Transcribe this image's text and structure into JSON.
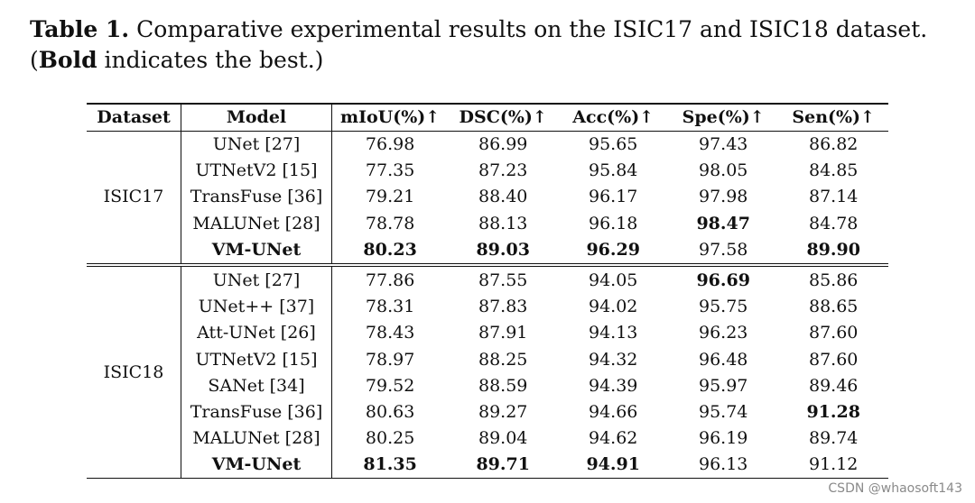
{
  "caption": {
    "label": "Table 1.",
    "text_before_bold": "Comparative experimental results on the ISIC17 and ISIC18 dataset. (",
    "bold_word": "Bold",
    "text_after_bold": " indicates the best.)"
  },
  "table": {
    "headers": [
      "Dataset",
      "Model",
      "mIoU(%)↑",
      "DSC(%)↑",
      "Acc(%)↑",
      "Spe(%)↑",
      "Sen(%)↑"
    ],
    "groups": [
      {
        "dataset": "ISIC17",
        "rows": [
          {
            "model": "UNet [27]",
            "values": [
              "76.98",
              "86.99",
              "95.65",
              "97.43",
              "86.82"
            ],
            "bold": [
              false,
              false,
              false,
              false,
              false
            ],
            "model_bold": false
          },
          {
            "model": "UTNetV2 [15]",
            "values": [
              "77.35",
              "87.23",
              "95.84",
              "98.05",
              "84.85"
            ],
            "bold": [
              false,
              false,
              false,
              false,
              false
            ],
            "model_bold": false
          },
          {
            "model": "TransFuse [36]",
            "values": [
              "79.21",
              "88.40",
              "96.17",
              "97.98",
              "87.14"
            ],
            "bold": [
              false,
              false,
              false,
              false,
              false
            ],
            "model_bold": false
          },
          {
            "model": "MALUNet [28]",
            "values": [
              "78.78",
              "88.13",
              "96.18",
              "98.47",
              "84.78"
            ],
            "bold": [
              false,
              false,
              false,
              true,
              false
            ],
            "model_bold": false
          },
          {
            "model": "VM-UNet",
            "values": [
              "80.23",
              "89.03",
              "96.29",
              "97.58",
              "89.90"
            ],
            "bold": [
              true,
              true,
              true,
              false,
              true
            ],
            "model_bold": true
          }
        ]
      },
      {
        "dataset": "ISIC18",
        "rows": [
          {
            "model": "UNet [27]",
            "values": [
              "77.86",
              "87.55",
              "94.05",
              "96.69",
              "85.86"
            ],
            "bold": [
              false,
              false,
              false,
              true,
              false
            ],
            "model_bold": false
          },
          {
            "model": "UNet++ [37]",
            "values": [
              "78.31",
              "87.83",
              "94.02",
              "95.75",
              "88.65"
            ],
            "bold": [
              false,
              false,
              false,
              false,
              false
            ],
            "model_bold": false
          },
          {
            "model": "Att-UNet [26]",
            "values": [
              "78.43",
              "87.91",
              "94.13",
              "96.23",
              "87.60"
            ],
            "bold": [
              false,
              false,
              false,
              false,
              false
            ],
            "model_bold": false
          },
          {
            "model": "UTNetV2 [15]",
            "values": [
              "78.97",
              "88.25",
              "94.32",
              "96.48",
              "87.60"
            ],
            "bold": [
              false,
              false,
              false,
              false,
              false
            ],
            "model_bold": false
          },
          {
            "model": "SANet [34]",
            "values": [
              "79.52",
              "88.59",
              "94.39",
              "95.97",
              "89.46"
            ],
            "bold": [
              false,
              false,
              false,
              false,
              false
            ],
            "model_bold": false
          },
          {
            "model": "TransFuse [36]",
            "values": [
              "80.63",
              "89.27",
              "94.66",
              "95.74",
              "91.28"
            ],
            "bold": [
              false,
              false,
              false,
              false,
              true
            ],
            "model_bold": false
          },
          {
            "model": "MALUNet [28]",
            "values": [
              "80.25",
              "89.04",
              "94.62",
              "96.19",
              "89.74"
            ],
            "bold": [
              false,
              false,
              false,
              false,
              false
            ],
            "model_bold": false
          },
          {
            "model": "VM-UNet",
            "values": [
              "81.35",
              "89.71",
              "94.91",
              "96.13",
              "91.12"
            ],
            "bold": [
              true,
              true,
              true,
              false,
              false
            ],
            "model_bold": true
          }
        ]
      }
    ]
  },
  "watermark": "CSDN @whaosoft143"
}
